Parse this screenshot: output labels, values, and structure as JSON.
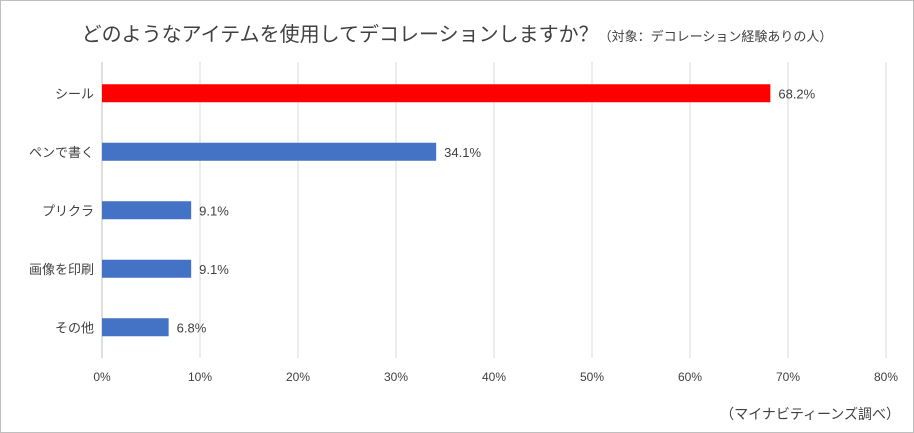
{
  "title": "どのようなアイテムを使用してデコレーションしますか？",
  "subtitle": "（対象：デコレーション経験ありの人）",
  "source": "（マイナビティーンズ調べ）",
  "colors": {
    "highlight": "#ff0000",
    "bar": "#4472c4",
    "grid": "#d9d9d9",
    "text": "#404040"
  },
  "chart_data": {
    "type": "bar",
    "orientation": "horizontal",
    "categories": [
      "シール",
      "ペンで書く",
      "プリクラ",
      "画像を印刷",
      "その他"
    ],
    "values": [
      68.2,
      34.1,
      9.1,
      9.1,
      6.8
    ],
    "value_labels": [
      "68.2%",
      "34.1%",
      "9.1%",
      "9.1%",
      "6.8%"
    ],
    "highlight_index": 0,
    "xlim": [
      0,
      80
    ],
    "xticks": [
      0,
      10,
      20,
      30,
      40,
      50,
      60,
      70,
      80
    ],
    "xtick_labels": [
      "0%",
      "10%",
      "20%",
      "30%",
      "40%",
      "50%",
      "60%",
      "70%",
      "80%"
    ],
    "grid": true,
    "legend": "none"
  }
}
